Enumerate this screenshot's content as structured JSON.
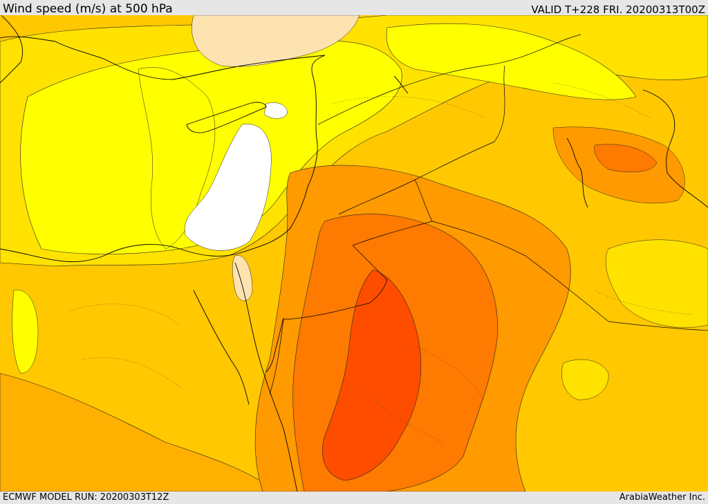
{
  "header": {
    "title": "Wind speed (m/s) at 500 hPa",
    "valid": "VALID T+228 FRI. 20200313T00Z"
  },
  "footer": {
    "model_run": "ECMWF MODEL RUN: 20200303T12Z",
    "credit": "ArabiaWeather Inc."
  },
  "map": {
    "parameter": "wind speed",
    "level": "500 hPa",
    "units": "m/s",
    "palette": [
      "#ffffff",
      "#fde3b0",
      "#ffff00",
      "#ffe200",
      "#ffc800",
      "#ffb000",
      "#ff9a00",
      "#ff7a00",
      "#ff4d00"
    ]
  }
}
